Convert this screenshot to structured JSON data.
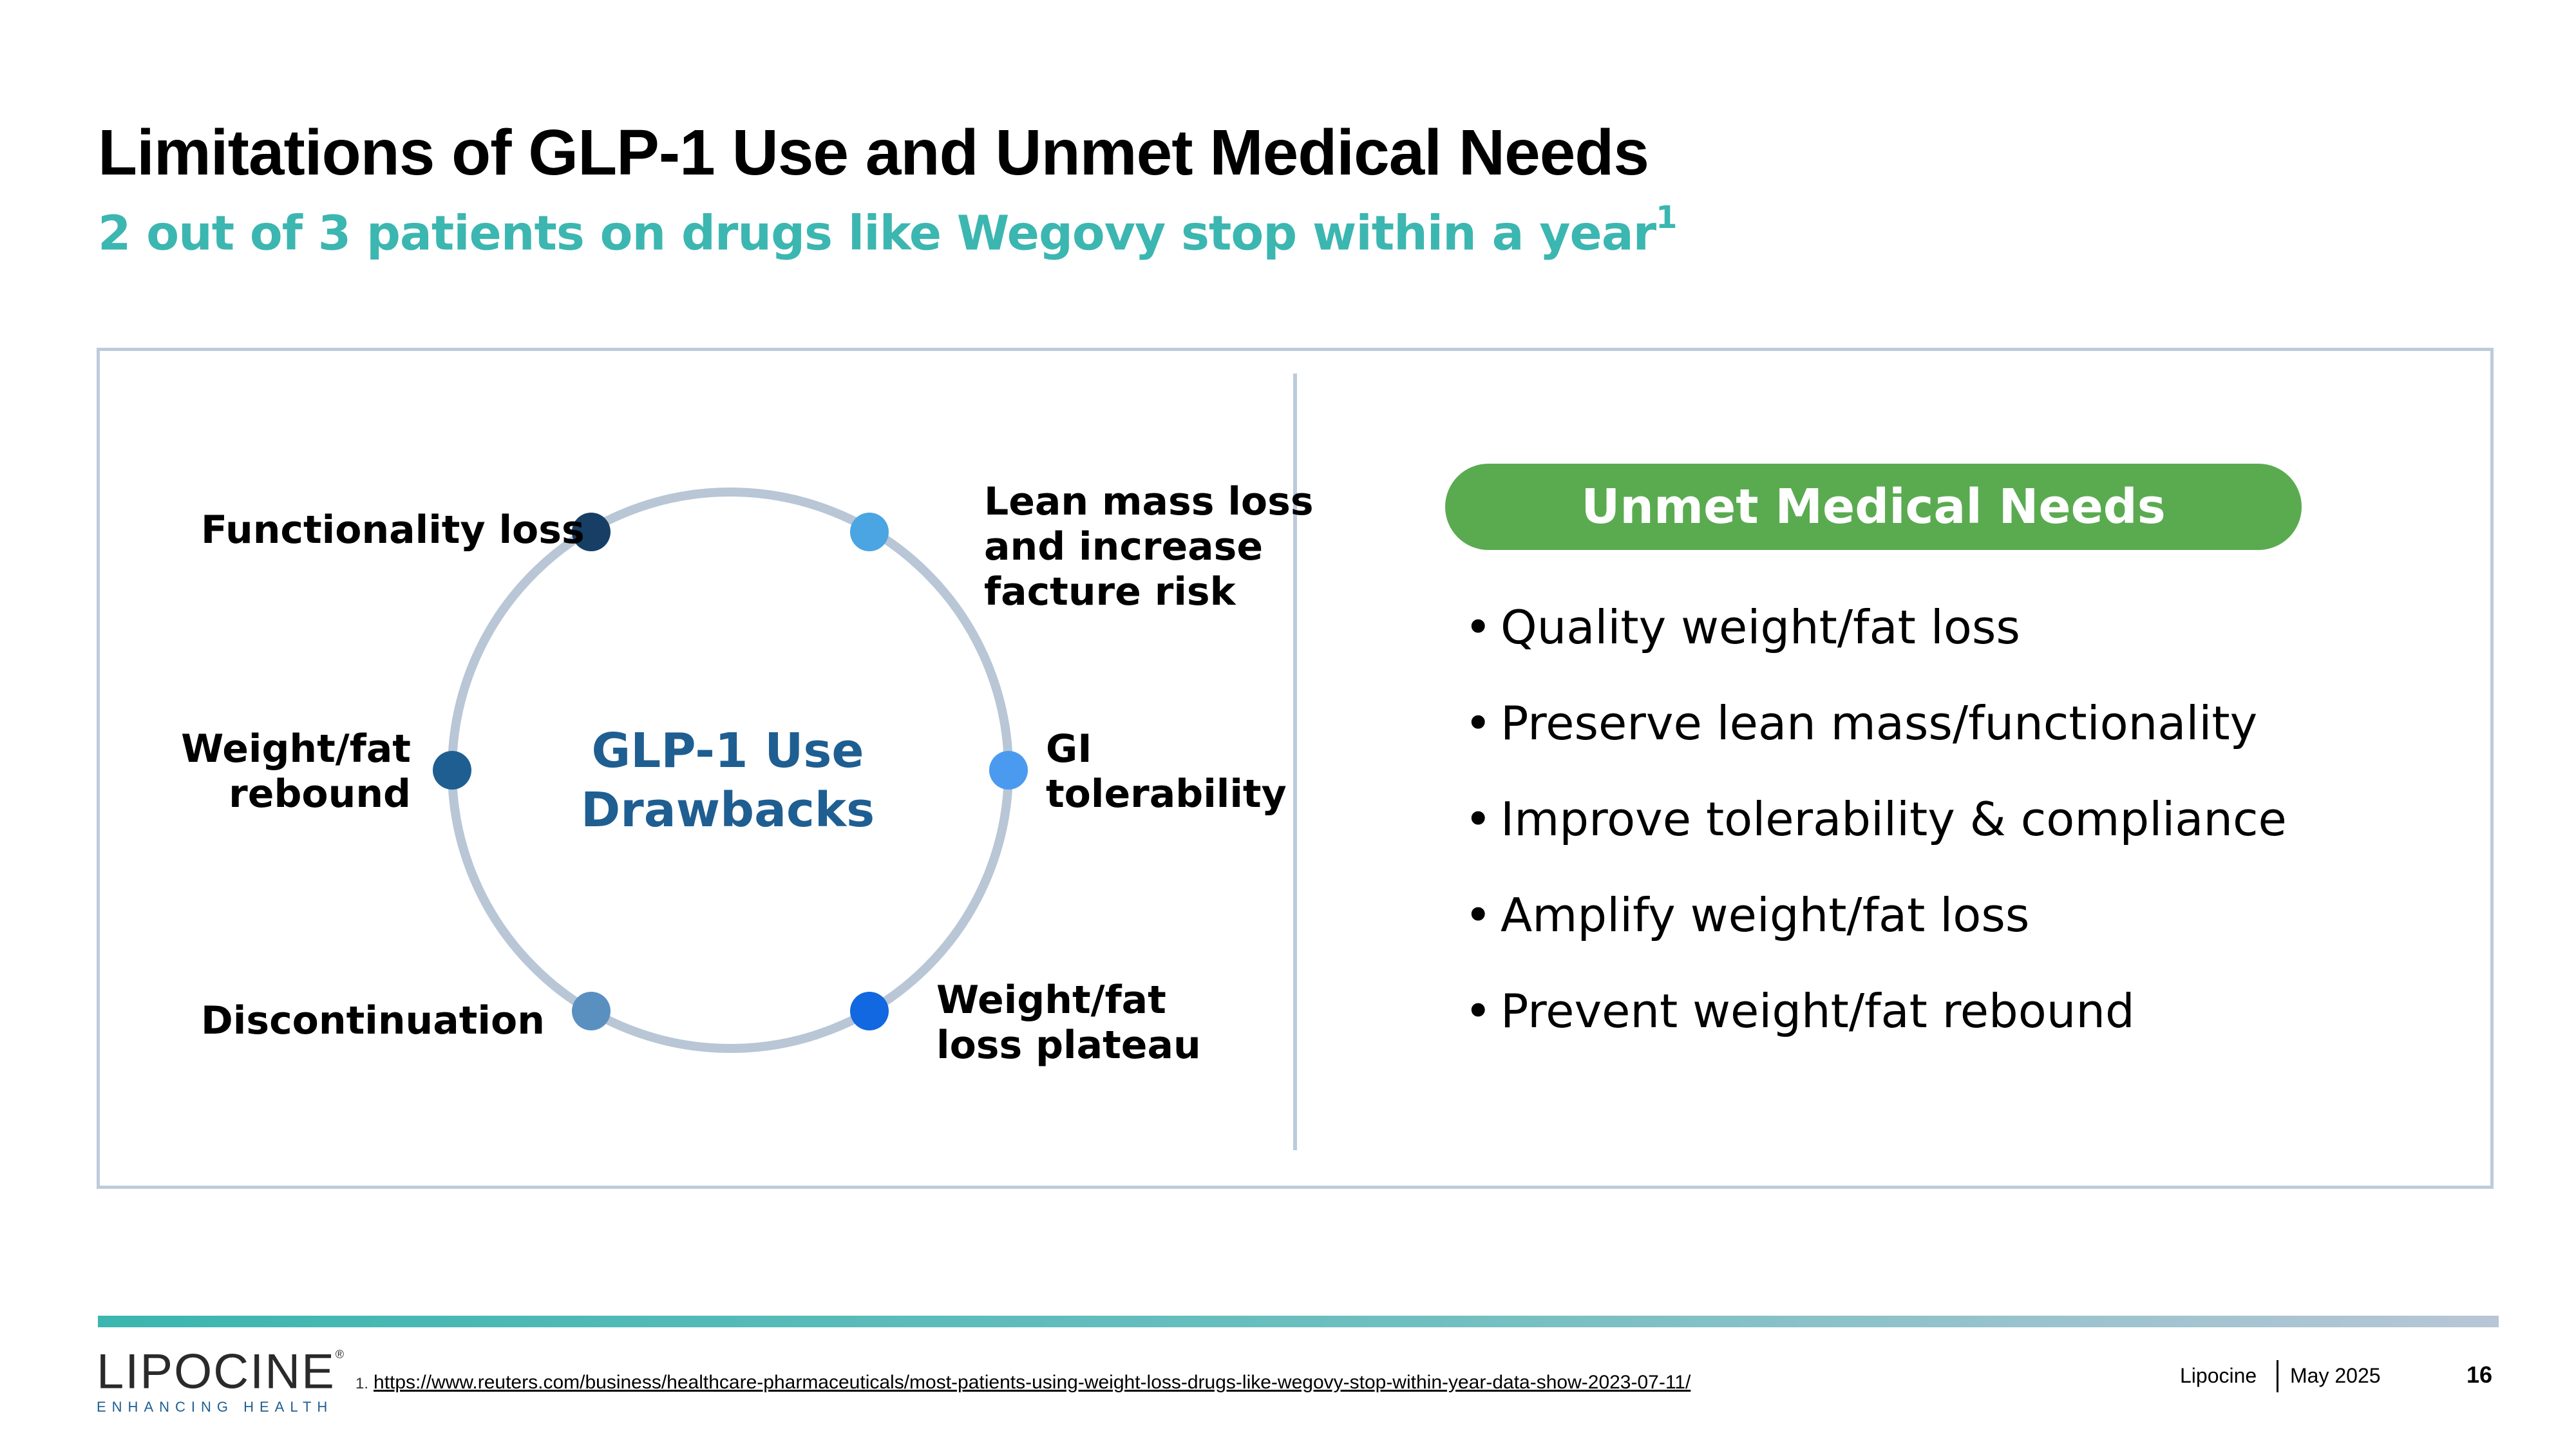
{
  "header": {
    "title": "Limitations of GLP-1 Use and Unmet Medical Needs",
    "subtitle": "2 out of 3 patients on drugs like Wegovy stop within a year",
    "subtitle_footnote_marker": "1"
  },
  "diagram": {
    "center_line1": "GLP-1 Use",
    "center_line2": "Drawbacks",
    "ring_color": "#b8c6d6",
    "nodes": [
      {
        "lines": [
          "Functionality loss"
        ],
        "color": "#173f66"
      },
      {
        "lines": [
          "Lean mass loss",
          "and increase",
          "facture risk"
        ],
        "color": "#4aa5e2"
      },
      {
        "lines": [
          "GI",
          "tolerability"
        ],
        "color": "#4a9bf0"
      },
      {
        "lines": [
          "Weight/fat",
          "loss plateau"
        ],
        "color": "#1168e0"
      },
      {
        "lines": [
          "Discontinuation"
        ],
        "color": "#5a90c0"
      },
      {
        "lines": [
          "Weight/fat",
          "rebound"
        ],
        "color": "#1f5e91"
      }
    ]
  },
  "needs": {
    "heading": "Unmet Medical Needs",
    "heading_color": "#5aab50",
    "items": [
      "Quality weight/fat loss",
      "Preserve lean mass/functionality",
      "Improve tolerability & compliance",
      "Amplify weight/fat loss",
      "Prevent weight/fat rebound"
    ]
  },
  "footer": {
    "logo_text": "LIPOCINE",
    "logo_mark": "®",
    "logo_tagline": "ENHANCING HEALTH",
    "footnote_number": "1.",
    "footnote_url": "https://www.reuters.com/business/healthcare-pharmaceuticals/most-patients-using-weight-loss-drugs-like-wegovy-stop-within-year-data-show-2023-07-11/",
    "company": "Lipocine",
    "date": "May 2025",
    "page_number": "16"
  }
}
